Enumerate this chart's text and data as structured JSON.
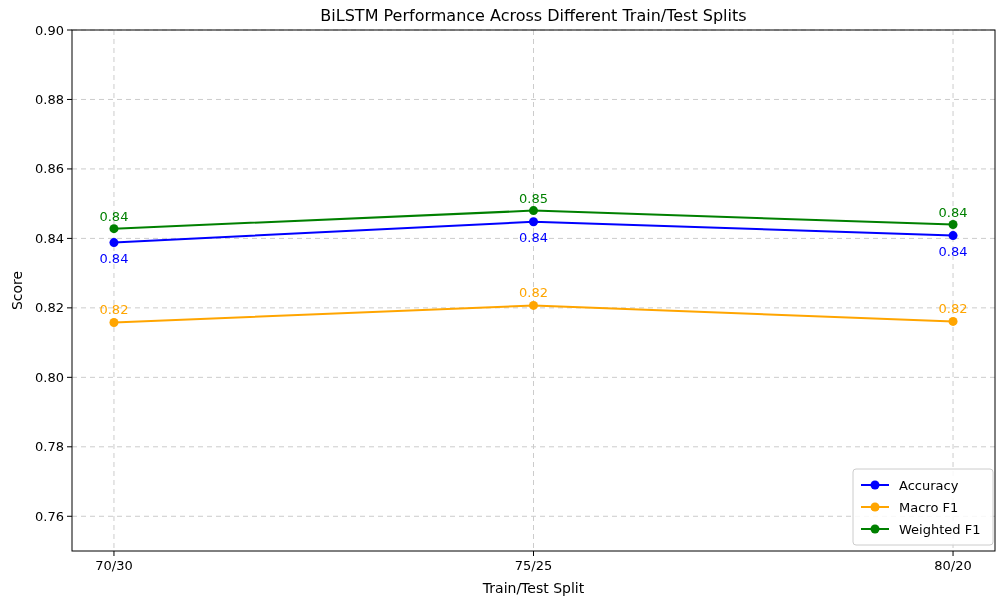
{
  "chart_data": {
    "type": "line",
    "title": "BiLSTM Performance Across Different Train/Test Splits",
    "xlabel": "Train/Test Split",
    "ylabel": "Score",
    "categories": [
      "70/30",
      "75/25",
      "80/20"
    ],
    "series": [
      {
        "name": "Accuracy",
        "color": "#0000ff",
        "values": [
          0.8388,
          0.8448,
          0.8408
        ],
        "value_labels": [
          "0.84",
          "0.84",
          "0.84"
        ]
      },
      {
        "name": "Macro F1",
        "color": "#ffa500",
        "values": [
          0.8158,
          0.8207,
          0.8161
        ],
        "value_labels": [
          "0.82",
          "0.82",
          "0.82"
        ]
      },
      {
        "name": "Weighted F1",
        "color": "#008000",
        "values": [
          0.8428,
          0.848,
          0.844
        ],
        "value_labels": [
          "0.84",
          "0.85",
          "0.84"
        ]
      }
    ],
    "ylim": [
      0.75,
      0.9
    ],
    "yticks": [
      {
        "value": 0.76,
        "label": "0.76"
      },
      {
        "value": 0.78,
        "label": "0.78"
      },
      {
        "value": 0.8,
        "label": "0.80"
      },
      {
        "value": 0.82,
        "label": "0.82"
      },
      {
        "value": 0.84,
        "label": "0.84"
      },
      {
        "value": 0.86,
        "label": "0.86"
      },
      {
        "value": 0.88,
        "label": "0.88"
      },
      {
        "value": 0.9,
        "label": "0.90"
      }
    ],
    "grid": true,
    "legend": "bottom right",
    "marker": "circle",
    "line_style": "solid"
  }
}
